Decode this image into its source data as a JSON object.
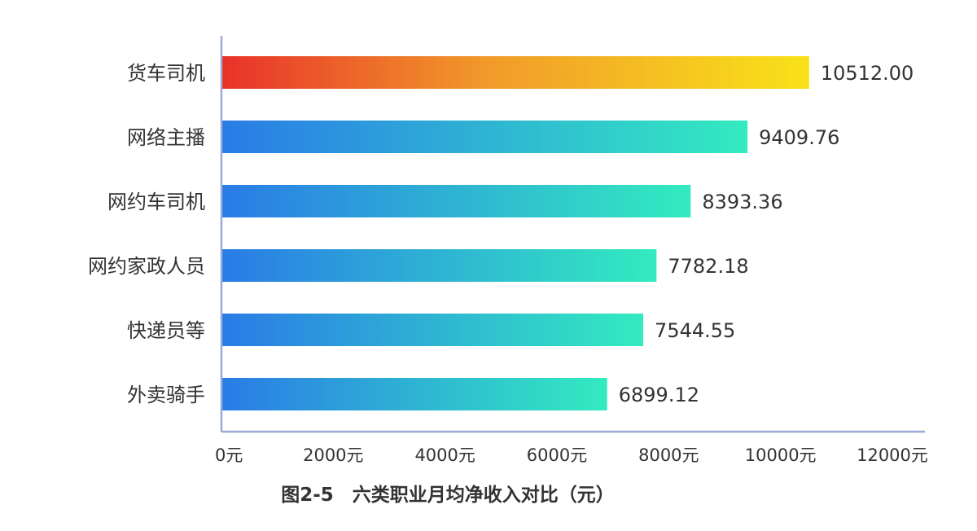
{
  "chart_data": {
    "type": "bar",
    "orientation": "horizontal",
    "title": "图2-5　六类职业月均净收入对比（元）",
    "categories": [
      "货车司机",
      "网络主播",
      "网约车司机",
      "网约家政人员",
      "快递员等",
      "外卖骑手"
    ],
    "values": [
      10512.0,
      9409.76,
      8393.36,
      7782.18,
      7544.55,
      6899.12
    ],
    "value_labels": [
      "10512.00",
      "9409.76",
      "8393.36",
      "7782.18",
      "7544.55",
      "6899.12"
    ],
    "x_ticks": [
      0,
      2000,
      4000,
      6000,
      8000,
      10000,
      12000
    ],
    "x_tick_labels": [
      "0元",
      "2000元",
      "4000元",
      "6000元",
      "8000元",
      "10000元",
      "12000元"
    ],
    "xlim": [
      0,
      12000
    ],
    "grid": false,
    "colors": {
      "highlight_start": "#e8322a",
      "highlight_mid": "#f19a2a",
      "highlight_end": "#f9e21a",
      "bar_start": "#2a7be6",
      "bar_end": "#33ebc0",
      "axis": "#9aaad8",
      "text": "#333333"
    }
  }
}
